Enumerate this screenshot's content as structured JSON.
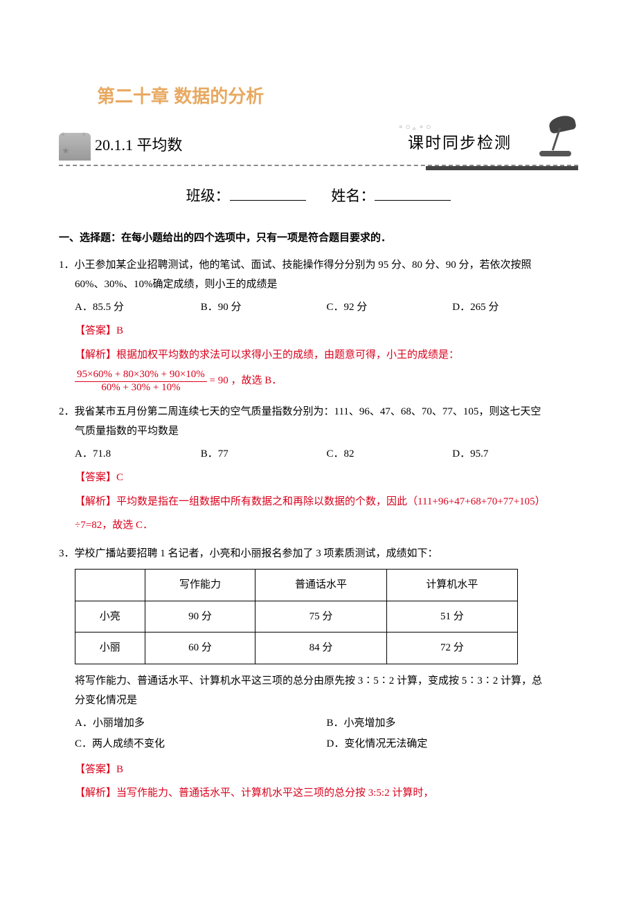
{
  "header": {
    "chapter_title": "第二十章 数据的分析",
    "section_title": "20.1.1 平均数",
    "stamp": "课时同步检测",
    "class_label": "班级：",
    "name_label": "姓名："
  },
  "section_a": {
    "heading": "一、选择题：在每小题给出的四个选项中，只有一项是符合题目要求的．"
  },
  "q1": {
    "num": "1．",
    "stem_line1": "小王参加某企业招聘测试，他的笔试、面试、技能操作得分分别为 95 分、80 分、90 分，若依次按照",
    "stem_line2": "60%、30%、10%确定成绩，则小王的成绩是",
    "opts": {
      "a": "A．85.5 分",
      "b": "B．90 分",
      "c": "C．92 分",
      "d": "D．265 分"
    },
    "answer": "【答案】B",
    "explain_lead": "【解析】根据加权平均数的求法可以求得小王的成绩，由题意可得，小王的成绩是：",
    "frac_num": "95×60% + 80×30% + 90×10%",
    "frac_den": "60% + 30% + 10%",
    "explain_tail": " = 90 ，故选 B．"
  },
  "q2": {
    "num": "2．",
    "stem_line1": "我省某市五月份第二周连续七天的空气质量指数分别为：111、96、47、68、70、77、105，则这七天空",
    "stem_line2": "气质量指数的平均数是",
    "opts": {
      "a": "A．71.8",
      "b": "B．77",
      "c": "C．82",
      "d": "D．95.7"
    },
    "answer": "【答案】C",
    "explain1": "【解析】平均数是指在一组数据中所有数据之和再除以数据的个数，因此（111+96+47+68+70+77+105）",
    "explain2": "÷7=82，故选 C．"
  },
  "q3": {
    "num": "3．",
    "stem": "学校广播站要招聘 1 名记者，小亮和小丽报名参加了 3 项素质测试，成绩如下：",
    "table": {
      "headers": [
        "",
        "写作能力",
        "普通话水平",
        "计算机水平"
      ],
      "rows": [
        [
          "小亮",
          "90 分",
          "75 分",
          "51 分"
        ],
        [
          "小丽",
          "60 分",
          "84 分",
          "72 分"
        ]
      ]
    },
    "post1": "将写作能力、普通话水平、计算机水平这三项的总分由原先按 3∶5∶2 计算，变成按 5∶3∶2 计算，总",
    "post2": "分变化情况是",
    "opts": {
      "a": "A．小丽增加多",
      "b": "B．小亮增加多",
      "c": "C．两人成绩不变化",
      "d": "D．变化情况无法确定"
    },
    "answer": "【答案】B",
    "explain": "【解析】当写作能力、普通话水平、计算机水平这三项的总分按 3:5:2 计算时，"
  },
  "colors": {
    "orange": "#e8a961",
    "red": "#d9001b",
    "text": "#000000",
    "bg": "#ffffff"
  }
}
